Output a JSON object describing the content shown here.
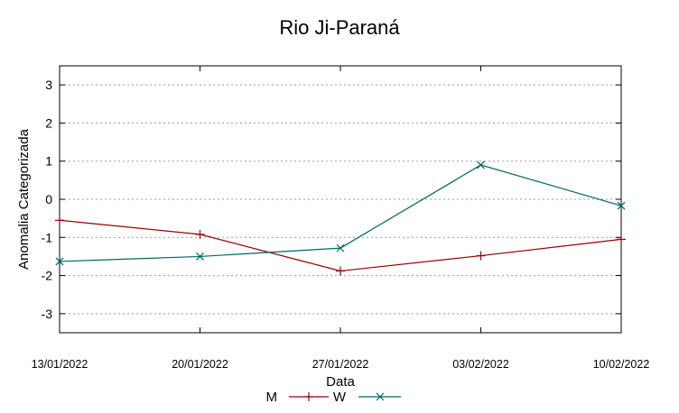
{
  "chart_data": {
    "type": "line",
    "title": "Rio Ji-Paraná",
    "xlabel": "Data",
    "ylabel": "Anomalia Categorizada",
    "categories": [
      "13/01/2022",
      "20/01/2022",
      "27/01/2022",
      "03/02/2022",
      "10/02/2022"
    ],
    "ylim": [
      -3.5,
      3.5
    ],
    "yticks": [
      "-3",
      "-2",
      "-1",
      "0",
      "1",
      "2",
      "3"
    ],
    "grid": "horizontal dotted",
    "legend_position": "bottom-center",
    "series": [
      {
        "name": "M",
        "color": "#990000",
        "marker": "+",
        "values": [
          -0.55,
          -0.92,
          -1.88,
          -1.48,
          -1.05
        ]
      },
      {
        "name": "W",
        "color": "#006666",
        "marker": "x",
        "values": [
          -1.63,
          -1.5,
          -1.28,
          0.9,
          -0.17
        ]
      }
    ]
  }
}
